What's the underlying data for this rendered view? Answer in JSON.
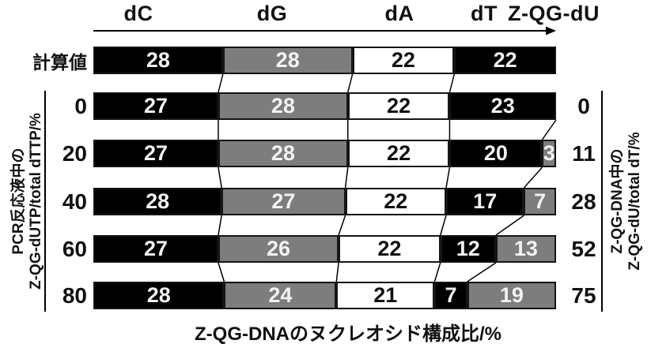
{
  "figure": {
    "header_labels": [
      "dC",
      "dG",
      "dA",
      "dT",
      "Z-QG-dU"
    ],
    "left_axis": {
      "title_line1": "PCR反応液中の",
      "title_line2": "Z-QG-dUTP/total dTTP/%"
    },
    "right_axis": {
      "title_line1": "Z-QG-DNA中の",
      "title_line2": "Z-QG-dU/total dT/%"
    },
    "x_axis_title": "Z-QG-DNAのヌクレオシド構成比/%"
  },
  "chart_data": {
    "type": "bar",
    "subtype": "horizontal-stacked-percentage",
    "orientation": "horizontal",
    "title": "",
    "xlabel": "Z-QG-DNAのヌクレオシド構成比/%",
    "left_axis_label": "PCR反応液中の Z-QG-dUTP/total dTTP/%",
    "right_axis_label": "Z-QG-DNA中の Z-QG-dU/total dT/%",
    "legend_position": "top",
    "categories": [
      "計算値",
      "0",
      "20",
      "40",
      "60",
      "80"
    ],
    "right_tick_labels": [
      "",
      "0",
      "11",
      "28",
      "52",
      "75"
    ],
    "series": [
      {
        "name": "dC",
        "color": "#000000",
        "text_color": "#f2f2f2",
        "values": [
          28,
          27,
          27,
          28,
          27,
          28
        ]
      },
      {
        "name": "dG",
        "color": "#7d7d7d",
        "text_color": "#f2f2f2",
        "values": [
          28,
          28,
          28,
          27,
          26,
          24
        ]
      },
      {
        "name": "dA",
        "color": "#ffffff",
        "text_color": "#111111",
        "values": [
          22,
          22,
          22,
          22,
          22,
          21
        ]
      },
      {
        "name": "dT",
        "color": "#000000",
        "text_color": "#f2f2f2",
        "values": [
          22,
          23,
          20,
          17,
          12,
          7
        ]
      },
      {
        "name": "Z-QG-dU",
        "color": "#7d7d7d",
        "text_color": "#f2f2f2",
        "values": [
          null,
          null,
          3,
          7,
          13,
          19
        ]
      }
    ],
    "colors": {
      "black": "#000000",
      "gray": "#7d7d7d",
      "white": "#ffffff",
      "line": "#000000"
    }
  }
}
